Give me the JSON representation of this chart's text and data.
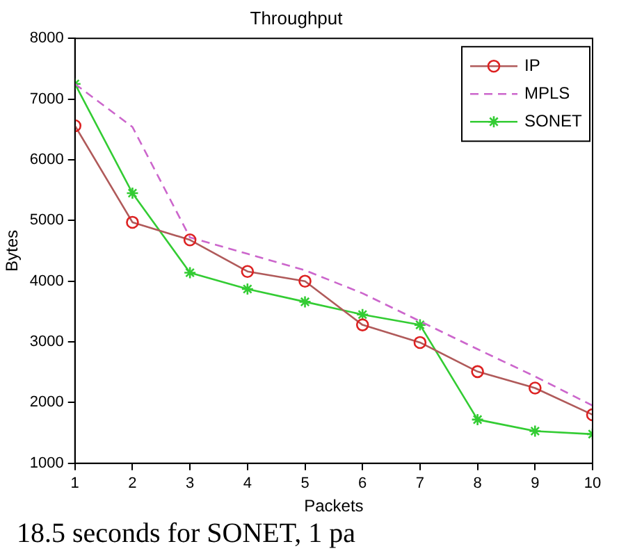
{
  "chart_data": {
    "type": "line",
    "title": "Throughput",
    "xlabel": "Packets",
    "ylabel": "Bytes",
    "x": [
      1,
      2,
      3,
      4,
      5,
      6,
      7,
      8,
      9,
      10
    ],
    "series": [
      {
        "name": "IP",
        "color": "#b05a5a",
        "marker": "circle",
        "line_style": "solid",
        "values": [
          6560,
          4970,
          4680,
          4160,
          4000,
          3280,
          2990,
          2510,
          2240,
          1800
        ]
      },
      {
        "name": "MPLS",
        "color": "#cc66cc",
        "marker": "none",
        "line_style": "dashed",
        "values": [
          7250,
          6540,
          4720,
          4450,
          4180,
          3800,
          3340,
          2880,
          2430,
          1950
        ]
      },
      {
        "name": "SONET",
        "color": "#33cc33",
        "marker": "cross",
        "line_style": "solid",
        "values": [
          7250,
          5450,
          4140,
          3870,
          3660,
          3450,
          3280,
          1720,
          1530,
          1480
        ]
      }
    ],
    "xlim": [
      1,
      10
    ],
    "xticks": [
      1,
      2,
      3,
      4,
      5,
      6,
      7,
      8,
      9,
      10
    ],
    "ylim": [
      1000,
      8000
    ],
    "yticks": [
      1000,
      2000,
      3000,
      4000,
      5000,
      6000,
      7000,
      8000
    ],
    "grid": false,
    "legend": "top right",
    "annotations": [
      "18.5 seconds for SONET, 1 pa"
    ]
  }
}
